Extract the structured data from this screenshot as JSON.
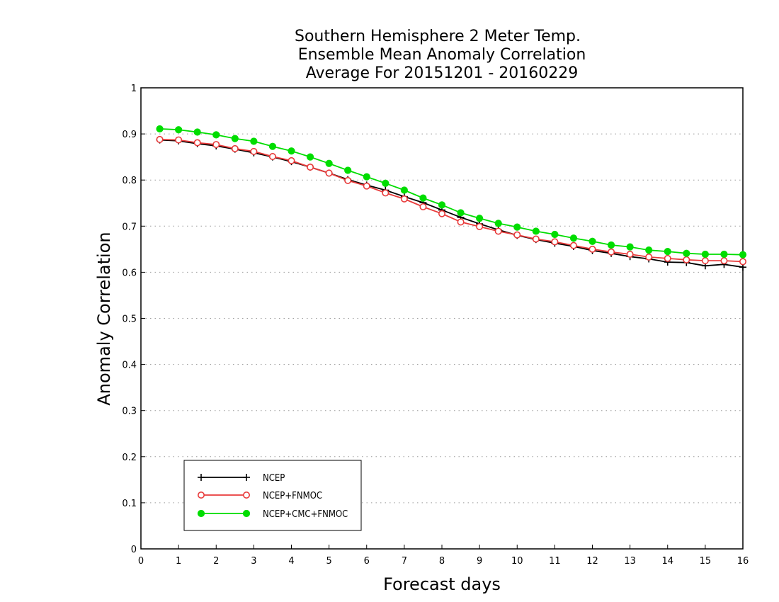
{
  "chart_data": {
    "type": "line",
    "title": [
      "Southern Hemisphere 2 Meter Temp.",
      "Ensemble Mean Anomaly Correlation",
      "Average For 20151201 - 20160229"
    ],
    "xlabel": "Forecast days",
    "ylabel": "Anomaly Correlation",
    "xlim": [
      0,
      16
    ],
    "ylim": [
      0,
      1
    ],
    "x_ticks": [
      "0",
      "1",
      "2",
      "3",
      "4",
      "5",
      "6",
      "7",
      "8",
      "9",
      "10",
      "11",
      "12",
      "13",
      "14",
      "15",
      "16"
    ],
    "y_ticks": [
      "0",
      "0.1",
      "0.2",
      "0.3",
      "0.4",
      "0.5",
      "0.6",
      "0.7",
      "0.8",
      "0.9",
      "1"
    ],
    "grid": "dotted horizontal",
    "legend_position": "bottom-left",
    "x": [
      0.5,
      1,
      1.5,
      2,
      2.5,
      3,
      3.5,
      4,
      4.5,
      5,
      5.5,
      6,
      6.5,
      7,
      7.5,
      8,
      8.5,
      9,
      9.5,
      10,
      10.5,
      11,
      11.5,
      12,
      12.5,
      13,
      13.5,
      14,
      14.5,
      15,
      15.5,
      16
    ],
    "series": [
      {
        "name": "NCEP",
        "color": "#000000",
        "marker": "plus",
        "values": [
          0.887,
          0.885,
          0.879,
          0.874,
          0.867,
          0.859,
          0.85,
          0.84,
          0.828,
          0.815,
          0.801,
          0.789,
          0.778,
          0.764,
          0.751,
          0.735,
          0.719,
          0.705,
          0.692,
          0.68,
          0.671,
          0.663,
          0.656,
          0.647,
          0.641,
          0.634,
          0.629,
          0.622,
          0.621,
          0.614,
          0.617,
          0.611
        ]
      },
      {
        "name": "NCEP+FNMOC",
        "color": "#e83a3a",
        "marker": "open-circle",
        "values": [
          0.888,
          0.887,
          0.881,
          0.877,
          0.868,
          0.862,
          0.851,
          0.842,
          0.828,
          0.815,
          0.799,
          0.787,
          0.772,
          0.759,
          0.742,
          0.727,
          0.709,
          0.699,
          0.689,
          0.681,
          0.672,
          0.666,
          0.658,
          0.65,
          0.644,
          0.639,
          0.633,
          0.63,
          0.627,
          0.625,
          0.625,
          0.623
        ]
      },
      {
        "name": "NCEP+CMC+FNMOC",
        "color": "#00dd00",
        "marker": "filled-circle",
        "values": [
          0.911,
          0.909,
          0.904,
          0.898,
          0.89,
          0.884,
          0.873,
          0.863,
          0.85,
          0.836,
          0.821,
          0.807,
          0.793,
          0.778,
          0.761,
          0.746,
          0.729,
          0.717,
          0.706,
          0.698,
          0.689,
          0.682,
          0.674,
          0.667,
          0.659,
          0.655,
          0.648,
          0.645,
          0.641,
          0.639,
          0.639,
          0.638
        ]
      }
    ]
  }
}
